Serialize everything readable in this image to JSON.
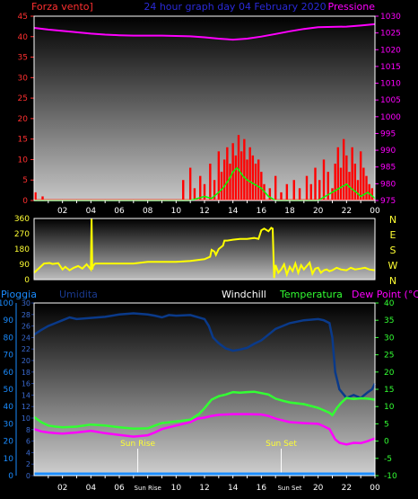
{
  "header": {
    "left_label": "Forza vento]",
    "title": "24 hour graph day  04 February 2020",
    "right_label": "Pressione"
  },
  "colors": {
    "wind": "#ff0000",
    "gust": "#00ff00",
    "pressure": "#ff00ff",
    "direction": "#ffff00",
    "rain": "#1a8cff",
    "humidity": "#0a3a8a",
    "temperature": "#33ff33",
    "dewpoint": "#ff00ff",
    "left_axis": "#ff3030",
    "press_axis": "#ff00ff",
    "green_axis": "#33ff33",
    "rain_axis": "#1a8cff"
  },
  "x_ticks": [
    "02",
    "04",
    "06",
    "08",
    "10",
    "12",
    "14",
    "16",
    "18",
    "20",
    "22",
    "00"
  ],
  "sun": {
    "rise_label": "Sun Rise",
    "set_label": "Sun Set",
    "rise_hour": 7.3,
    "set_hour": 17.4
  },
  "chart_data": [
    {
      "type": "line",
      "title": "24 hour graph day  04 February 2020",
      "ylabel": "Forza vento]",
      "y2label": "Pressione",
      "x_range": [
        0,
        24
      ],
      "ylim": [
        0,
        45
      ],
      "y_ticks": [
        0,
        5,
        10,
        15,
        20,
        25,
        30,
        35,
        40,
        45
      ],
      "y2lim": [
        975,
        1030
      ],
      "y2_ticks": [
        975,
        980,
        985,
        990,
        995,
        1000,
        1005,
        1010,
        1015,
        1020,
        1025,
        1030
      ],
      "series": [
        {
          "role": "pressure",
          "axis": "right",
          "x": [
            0,
            1,
            2,
            3,
            4,
            5,
            6,
            7,
            8,
            9,
            10,
            11,
            12,
            13,
            14,
            15,
            16,
            17,
            18,
            19,
            20,
            21,
            22,
            23,
            24
          ],
          "y": [
            1026.5,
            1026,
            1025.6,
            1025.2,
            1024.8,
            1024.5,
            1024.3,
            1024.2,
            1024.2,
            1024.2,
            1024.1,
            1024,
            1023.7,
            1023.3,
            1023,
            1023.3,
            1023.9,
            1024.7,
            1025.5,
            1026.2,
            1026.7,
            1026.8,
            1026.9,
            1027.2,
            1027.6
          ]
        },
        {
          "role": "gust",
          "axis": "left",
          "x": [
            0,
            10,
            11,
            11.5,
            12,
            12.5,
            13,
            13.3,
            13.7,
            14,
            14.3,
            14.7,
            15,
            15.5,
            16,
            16.5,
            17,
            18,
            19,
            20,
            20.5,
            21,
            21.5,
            22,
            22.3,
            22.7,
            23,
            23.5,
            24
          ],
          "y": [
            0,
            0,
            0,
            0.5,
            1,
            0.5,
            2,
            3,
            5,
            7,
            8,
            6,
            5,
            4,
            3,
            1,
            0,
            0,
            0,
            0,
            1,
            2,
            3,
            4,
            3,
            2,
            1,
            2,
            0.5
          ]
        }
      ],
      "wind_bars": {
        "role": "wind",
        "x": [
          0.1,
          0.6,
          10.5,
          11.0,
          11.3,
          11.7,
          12.0,
          12.4,
          12.7,
          13.0,
          13.2,
          13.4,
          13.6,
          13.8,
          14.0,
          14.2,
          14.4,
          14.6,
          14.8,
          15.0,
          15.2,
          15.4,
          15.6,
          15.8,
          16.0,
          16.2,
          16.6,
          17.0,
          17.4,
          17.8,
          18.3,
          18.7,
          19.2,
          19.5,
          19.8,
          20.1,
          20.4,
          20.7,
          21.0,
          21.2,
          21.4,
          21.6,
          21.8,
          22.0,
          22.2,
          22.4,
          22.6,
          22.8,
          23.0,
          23.2,
          23.4,
          23.6,
          23.8
        ],
        "y": [
          2,
          1,
          5,
          8,
          3,
          6,
          4,
          9,
          5,
          12,
          7,
          10,
          13,
          9,
          14,
          11,
          16,
          12,
          15,
          10,
          13,
          11,
          9,
          10,
          7,
          4,
          3,
          6,
          2,
          4,
          5,
          3,
          6,
          4,
          8,
          5,
          10,
          7,
          3,
          9,
          13,
          8,
          15,
          11,
          7,
          13,
          9,
          5,
          12,
          8,
          6,
          4,
          3
        ]
      }
    },
    {
      "type": "line",
      "ylabel": "",
      "x_range": [
        0,
        24
      ],
      "ylim": [
        0,
        360
      ],
      "y_ticks": [
        0,
        90,
        180,
        270,
        360
      ],
      "y2_ticks": [
        "N",
        "W",
        "S",
        "E",
        "N"
      ],
      "series": [
        {
          "role": "direction",
          "x": [
            0,
            0.7,
            1.1,
            1.3,
            1.7,
            2.0,
            2.2,
            2.5,
            2.8,
            3.1,
            3.4,
            3.7,
            3.9,
            4.0,
            4.05,
            4.1,
            4.15,
            4.3,
            4.7,
            5.0,
            6,
            7,
            8,
            9,
            10,
            11,
            12,
            12.4,
            12.5,
            12.7,
            12.8,
            13,
            13.3,
            13.4,
            13.6,
            14,
            14.5,
            15,
            15.5,
            15.8,
            16,
            16.2,
            16.5,
            16.7,
            16.8,
            16.9,
            17.0,
            17.2,
            17.4,
            17.6,
            17.8,
            18.0,
            18.2,
            18.4,
            18.6,
            18.8,
            19.0,
            19.2,
            19.4,
            19.6,
            19.8,
            20.0,
            20.2,
            20.4,
            20.6,
            20.8,
            21.0,
            21.3,
            21.6,
            22.0,
            22.3,
            22.6,
            23.0,
            23.3,
            23.6,
            24
          ],
          "y": [
            40,
            95,
            98,
            92,
            97,
            60,
            75,
            55,
            70,
            80,
            65,
            90,
            70,
            60,
            360,
            60,
            80,
            95,
            95,
            95,
            95,
            95,
            105,
            105,
            105,
            110,
            120,
            135,
            175,
            165,
            145,
            180,
            200,
            230,
            230,
            235,
            240,
            240,
            245,
            240,
            290,
            300,
            285,
            305,
            300,
            10,
            85,
            40,
            60,
            90,
            30,
            75,
            50,
            95,
            40,
            85,
            60,
            80,
            100,
            35,
            65,
            70,
            40,
            55,
            60,
            50,
            55,
            70,
            60,
            55,
            70,
            60,
            65,
            70,
            60,
            55
          ]
        }
      ]
    },
    {
      "type": "line",
      "labels": {
        "rain": "Pioggia",
        "humidity": "Umidita",
        "windchill": "Windchill",
        "temperature": "Temperatura",
        "dewpoint": "Dew Point (°C)"
      },
      "x_range": [
        0,
        24
      ],
      "rain_lim": [
        0,
        100
      ],
      "rain_ticks": [
        0,
        10,
        20,
        30,
        40,
        50,
        60,
        70,
        80,
        90,
        100
      ],
      "hum_lim": [
        0,
        30
      ],
      "hum_ticks": [
        0,
        2,
        4,
        6,
        8,
        10,
        12,
        14,
        16,
        18,
        20,
        22,
        24,
        26,
        28,
        30
      ],
      "temp_lim": [
        -10,
        40
      ],
      "temp_ticks": [
        -10,
        -5,
        0,
        5,
        10,
        15,
        20,
        25,
        30,
        35,
        40
      ],
      "series": [
        {
          "role": "humidity",
          "axis": "humidity",
          "x": [
            0,
            0.5,
            1,
            1.5,
            2,
            2.5,
            3,
            4,
            5,
            6,
            7,
            8,
            8.5,
            9,
            9.5,
            10,
            11,
            12,
            12.3,
            12.6,
            13,
            13.5,
            14,
            14.5,
            15,
            15.5,
            16,
            16.5,
            17,
            18,
            19,
            20,
            20.4,
            20.8,
            21,
            21.2,
            21.5,
            22,
            22.5,
            23,
            23.5,
            23.8,
            24
          ],
          "y": [
            24.5,
            25.3,
            26,
            26.5,
            27,
            27.5,
            27.2,
            27.4,
            27.6,
            28,
            28.2,
            28,
            27.8,
            27.5,
            27.9,
            27.8,
            27.9,
            27.2,
            26,
            24,
            23,
            22.1,
            21.7,
            21.9,
            22.2,
            22.9,
            23.5,
            24.5,
            25.5,
            26.5,
            27,
            27.2,
            27,
            26.5,
            24,
            18,
            15,
            13.5,
            14,
            13.5,
            14.5,
            15,
            16
          ]
        },
        {
          "role": "temperature",
          "axis": "temp",
          "x": [
            0,
            0.5,
            1,
            1.5,
            2,
            3,
            4,
            5,
            6,
            7,
            8,
            8.5,
            9,
            10,
            11,
            11.3,
            11.6,
            12,
            12.5,
            13,
            13.5,
            14,
            14.5,
            15,
            15.5,
            16,
            16.5,
            17,
            17.5,
            18,
            19,
            20,
            20.4,
            20.8,
            21,
            21.3,
            21.6,
            22,
            22.5,
            23,
            23.5,
            24
          ],
          "y": [
            7,
            5.5,
            4.5,
            4.2,
            4,
            4.2,
            4.8,
            4.5,
            4,
            3.6,
            3.7,
            4.5,
            5.2,
            5.7,
            6.2,
            7,
            7.8,
            9.5,
            12,
            13,
            13.5,
            14.2,
            14,
            14.2,
            14.3,
            13.9,
            13.5,
            12.3,
            11.7,
            11.2,
            10.7,
            9.6,
            8.9,
            8.2,
            7.5,
            9.5,
            11,
            12.5,
            12.2,
            12.4,
            12.3,
            12
          ]
        },
        {
          "role": "dewpoint",
          "axis": "temp",
          "x": [
            0,
            0.5,
            1,
            1.5,
            2,
            3,
            4,
            5,
            6,
            7,
            8,
            8.5,
            9,
            10,
            11,
            11.5,
            12,
            12.5,
            13,
            13.5,
            14,
            15,
            16,
            16.5,
            17,
            17.5,
            18,
            19,
            20,
            20.4,
            20.8,
            21,
            21.2,
            21.5,
            22,
            22.5,
            23,
            23.5,
            24
          ],
          "y": [
            3.5,
            2.8,
            2.5,
            2.3,
            2.2,
            2.5,
            3,
            2.3,
            1.8,
            1.3,
            1.7,
            2.5,
            3.5,
            4.5,
            5.5,
            6.5,
            6.8,
            7.3,
            7.6,
            7.7,
            7.8,
            7.8,
            7.7,
            7.3,
            6.5,
            6,
            5.5,
            5.2,
            5,
            4.3,
            3.5,
            2,
            0.5,
            -0.5,
            -1,
            -0.5,
            -0.6,
            0,
            0.8
          ]
        },
        {
          "role": "rain",
          "axis": "rain",
          "x": [
            0,
            24
          ],
          "y": [
            0,
            0
          ]
        }
      ]
    }
  ]
}
